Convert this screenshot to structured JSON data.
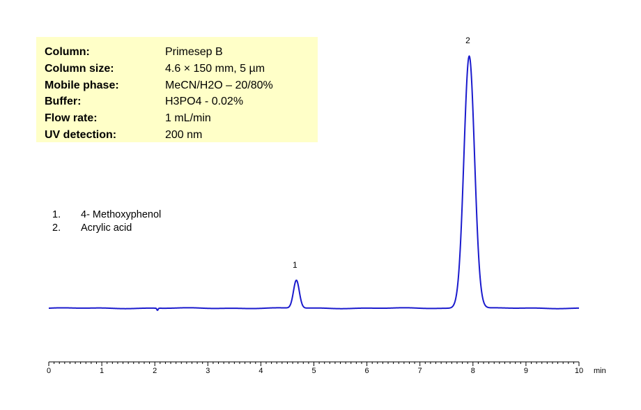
{
  "info_box": {
    "rows": [
      {
        "label": "Column:",
        "value": "Primesep  B"
      },
      {
        "label": "Column size:",
        "value": "4.6 × 150 mm, 5 µm"
      },
      {
        "label": "Mobile phase:",
        "value": "MeCN/H2O – 20/80%"
      },
      {
        "label": "Buffer:",
        "value": "H3PO4  - 0.02%"
      },
      {
        "label": "Flow rate:",
        "value": "1 mL/min"
      },
      {
        "label": "UV detection:",
        "value": "200 nm"
      }
    ]
  },
  "legend": {
    "items": [
      {
        "num": "1.",
        "name": "4- Methoxyphenol"
      },
      {
        "num": "2.",
        "name": "Acrylic acid"
      }
    ]
  },
  "chart_data": {
    "type": "line",
    "title": "",
    "xlabel": "min",
    "ylabel": "",
    "xlim": [
      0,
      10
    ],
    "x_ticks": [
      "0",
      "1",
      "2",
      "3",
      "4",
      "5",
      "6",
      "7",
      "8",
      "9",
      "10"
    ],
    "grid": false,
    "line_color": "#1a1acd",
    "baseline": 0,
    "series": [
      {
        "peaks": [
          {
            "label": "1",
            "retention_time": 4.67,
            "height": 40,
            "width": 0.055
          },
          {
            "label": "2",
            "retention_time": 7.93,
            "height": 362,
            "width": 0.1
          }
        ],
        "disturbances": [
          {
            "x": 2.05,
            "amplitude": -3
          }
        ]
      }
    ]
  }
}
